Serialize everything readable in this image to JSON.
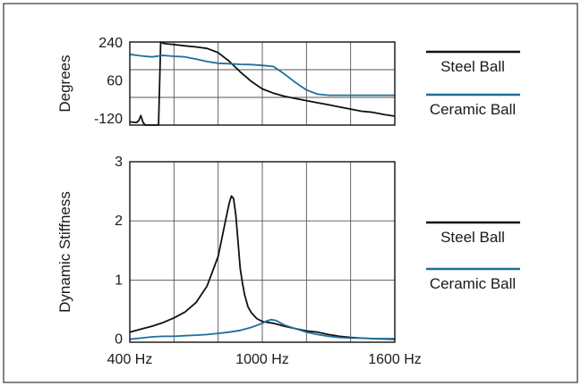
{
  "chart_data": [
    {
      "type": "line",
      "ylabel": "Degrees",
      "yticks": [
        "240",
        "60",
        "-120"
      ],
      "ylim": [
        -120,
        270
      ],
      "xlim": [
        400,
        1600
      ],
      "grid": true,
      "legend_position": "right",
      "series": [
        {
          "name": "Steel Ball",
          "color": "#111111",
          "x": [
            400,
            430,
            440,
            450,
            460,
            470,
            480,
            490,
            500,
            520,
            530,
            540,
            550,
            560,
            600,
            650,
            700,
            750,
            800,
            850,
            900,
            950,
            1000,
            1050,
            1100,
            1150,
            1200,
            1250,
            1300,
            1350,
            1400,
            1450,
            1500,
            1550,
            1600
          ],
          "y": [
            -105,
            -108,
            -100,
            -75,
            -108,
            -120,
            -120,
            -120,
            -120,
            -120,
            -120,
            270,
            265,
            262,
            258,
            252,
            247,
            240,
            220,
            180,
            130,
            85,
            50,
            30,
            15,
            5,
            -5,
            -15,
            -25,
            -35,
            -45,
            -55,
            -60,
            -70,
            -78
          ]
        },
        {
          "name": "Ceramic Ball",
          "color": "#1f6e9c",
          "x": [
            400,
            450,
            500,
            550,
            600,
            650,
            700,
            750,
            800,
            850,
            900,
            950,
            1000,
            1050,
            1100,
            1150,
            1200,
            1250,
            1300,
            1350,
            1400,
            1450,
            1500,
            1550,
            1600
          ],
          "y": [
            212,
            205,
            200,
            207,
            203,
            200,
            190,
            178,
            170,
            168,
            165,
            164,
            160,
            155,
            120,
            80,
            45,
            25,
            20,
            20,
            20,
            20,
            20,
            20,
            20
          ]
        }
      ]
    },
    {
      "type": "line",
      "ylabel": "Dynamic Stiffness",
      "yticks": [
        "0",
        "1",
        "2",
        "3"
      ],
      "xticks": [
        "400 Hz",
        "1000 Hz",
        "1600 Hz"
      ],
      "ylim": [
        -0.05,
        3
      ],
      "xlim": [
        400,
        1600
      ],
      "grid": true,
      "legend_position": "right",
      "series": [
        {
          "name": "Steel Ball",
          "color": "#111111",
          "x": [
            400,
            450,
            500,
            550,
            600,
            650,
            700,
            750,
            800,
            825,
            850,
            860,
            870,
            880,
            890,
            900,
            910,
            920,
            935,
            950,
            975,
            1000,
            1050,
            1100,
            1150,
            1200,
            1250,
            1300,
            1350,
            1400,
            1450,
            1500,
            1600
          ],
          "y": [
            0.12,
            0.17,
            0.22,
            0.28,
            0.36,
            0.46,
            0.62,
            0.9,
            1.4,
            1.85,
            2.3,
            2.42,
            2.38,
            2.1,
            1.65,
            1.2,
            0.95,
            0.75,
            0.55,
            0.45,
            0.35,
            0.3,
            0.27,
            0.22,
            0.18,
            0.14,
            0.12,
            0.08,
            0.05,
            0.03,
            0.02,
            0.01,
            0.0
          ]
        },
        {
          "name": "Ceramic Ball",
          "color": "#1f6e9c",
          "x": [
            400,
            450,
            500,
            550,
            600,
            650,
            700,
            750,
            800,
            850,
            900,
            950,
            1000,
            1020,
            1040,
            1060,
            1080,
            1100,
            1150,
            1200,
            1250,
            1300,
            1350,
            1400,
            1450,
            1500,
            1600
          ],
          "y": [
            0.0,
            0.02,
            0.04,
            0.05,
            0.05,
            0.06,
            0.07,
            0.08,
            0.1,
            0.12,
            0.15,
            0.2,
            0.27,
            0.31,
            0.33,
            0.32,
            0.28,
            0.24,
            0.18,
            0.12,
            0.08,
            0.05,
            0.03,
            0.02,
            0.02,
            0.01,
            0.01
          ]
        }
      ]
    }
  ]
}
